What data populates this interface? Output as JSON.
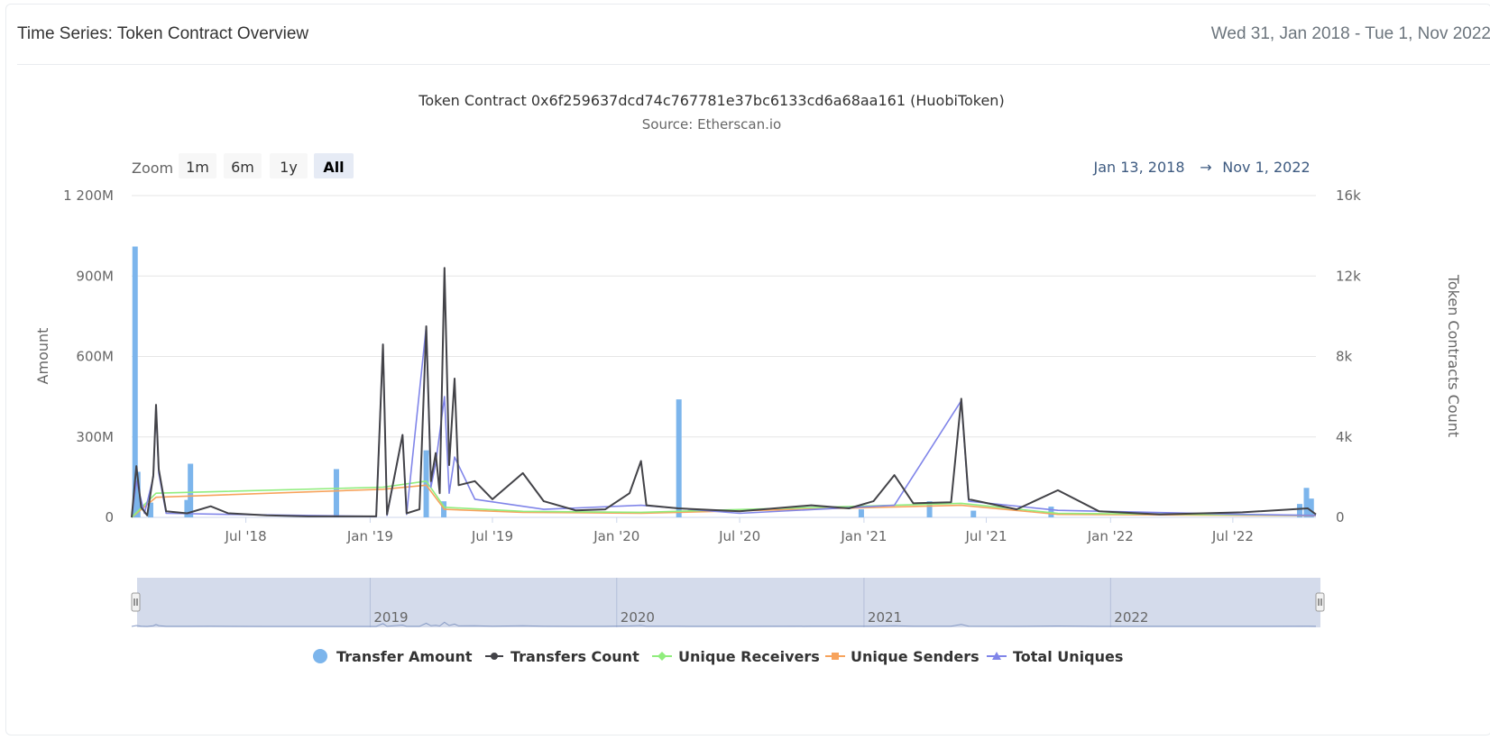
{
  "header": {
    "title": "Time Series: Token Contract Overview",
    "date_range": "Wed 31, Jan 2018 - Tue 1, Nov 2022"
  },
  "zoom": {
    "label": "Zoom",
    "buttons": [
      "1m",
      "6m",
      "1y",
      "All"
    ],
    "active": "All",
    "range_from": "Jan 13, 2018",
    "range_arrow": "→",
    "range_to": "Nov 1, 2022"
  },
  "navigator": {
    "year_labels": [
      "2019",
      "2020",
      "2021",
      "2022"
    ]
  },
  "colors": {
    "transfer_amount": "#7cb5ec",
    "transfers_count": "#434348",
    "unique_receivers": "#90ed7d",
    "unique_senders": "#f7a35c",
    "total_uniques": "#8085e9",
    "range_text": "#3d5a80",
    "navigator_bg": "#ccd5e8"
  },
  "chart_data": {
    "type": "line",
    "title": "Token Contract 0x6f259637dcd74c767781e37bc6133cd6a68aa161 (HuobiToken)",
    "subtitle": "Source: Etherscan.io",
    "xlabel": "",
    "x_ticks": [
      "Jul '18",
      "Jan '19",
      "Jul '19",
      "Jan '20",
      "Jul '20",
      "Jan '21",
      "Jul '21",
      "Jan '22",
      "Jul '22"
    ],
    "x_range": [
      "2018-01-13",
      "2022-11-01"
    ],
    "y_left": {
      "label": "Amount",
      "ticks": [
        "0",
        "300M",
        "600M",
        "900M",
        "1 200M"
      ],
      "range": [
        0,
        1200000000
      ]
    },
    "y_right": {
      "label": "Token Contracts Count",
      "ticks": [
        "0",
        "4k",
        "8k",
        "12k",
        "16k"
      ],
      "range": [
        0,
        16000
      ]
    },
    "grid": true,
    "legend_position": "bottom",
    "series": [
      {
        "name": "Transfer Amount",
        "type": "column",
        "axis": "left",
        "points": [
          [
            "2018-01-18",
            1010000000
          ],
          [
            "2018-01-22",
            170000000
          ],
          [
            "2018-02-10",
            55000000
          ],
          [
            "2018-04-10",
            200000000
          ],
          [
            "2018-04-05",
            65000000
          ],
          [
            "2018-11-12",
            180000000
          ],
          [
            "2019-03-25",
            250000000
          ],
          [
            "2019-04-20",
            60000000
          ],
          [
            "2020-04-02",
            440000000
          ],
          [
            "2020-12-28",
            30000000
          ],
          [
            "2021-04-08",
            60000000
          ],
          [
            "2021-06-12",
            25000000
          ],
          [
            "2021-10-05",
            40000000
          ],
          [
            "2022-10-08",
            50000000
          ],
          [
            "2022-10-18",
            110000000
          ],
          [
            "2022-10-25",
            70000000
          ]
        ]
      },
      {
        "name": "Transfers Count",
        "type": "line",
        "axis": "right",
        "points": [
          [
            "2018-01-13",
            0
          ],
          [
            "2018-01-20",
            2550
          ],
          [
            "2018-01-27",
            500
          ],
          [
            "2018-02-05",
            100
          ],
          [
            "2018-02-14",
            2100
          ],
          [
            "2018-02-18",
            5600
          ],
          [
            "2018-02-22",
            2400
          ],
          [
            "2018-03-05",
            300
          ],
          [
            "2018-04-05",
            200
          ],
          [
            "2018-05-10",
            550
          ],
          [
            "2018-06-05",
            200
          ],
          [
            "2018-08-01",
            100
          ],
          [
            "2018-10-01",
            50
          ],
          [
            "2019-01-10",
            50
          ],
          [
            "2019-01-20",
            8600
          ],
          [
            "2019-01-26",
            150
          ],
          [
            "2019-02-18",
            4100
          ],
          [
            "2019-02-24",
            200
          ],
          [
            "2019-03-15",
            400
          ],
          [
            "2019-03-25",
            9500
          ],
          [
            "2019-04-01",
            1800
          ],
          [
            "2019-04-08",
            3200
          ],
          [
            "2019-04-14",
            1200
          ],
          [
            "2019-04-21",
            12400
          ],
          [
            "2019-04-28",
            2600
          ],
          [
            "2019-05-06",
            6900
          ],
          [
            "2019-05-12",
            1600
          ],
          [
            "2019-06-05",
            1800
          ],
          [
            "2019-07-01",
            900
          ],
          [
            "2019-08-15",
            2200
          ],
          [
            "2019-09-15",
            800
          ],
          [
            "2019-11-01",
            350
          ],
          [
            "2019-12-15",
            400
          ],
          [
            "2020-01-20",
            1200
          ],
          [
            "2020-02-06",
            2800
          ],
          [
            "2020-02-14",
            600
          ],
          [
            "2020-04-01",
            450
          ],
          [
            "2020-07-01",
            300
          ],
          [
            "2020-10-15",
            600
          ],
          [
            "2020-12-10",
            450
          ],
          [
            "2021-01-15",
            800
          ],
          [
            "2021-02-15",
            2100
          ],
          [
            "2021-03-15",
            700
          ],
          [
            "2021-05-10",
            750
          ],
          [
            "2021-05-25",
            5900
          ],
          [
            "2021-06-05",
            900
          ],
          [
            "2021-08-15",
            400
          ],
          [
            "2021-10-15",
            1350
          ],
          [
            "2021-12-15",
            300
          ],
          [
            "2022-03-15",
            150
          ],
          [
            "2022-07-15",
            250
          ],
          [
            "2022-10-20",
            450
          ],
          [
            "2022-11-01",
            150
          ]
        ]
      },
      {
        "name": "Unique Receivers",
        "type": "line",
        "axis": "right",
        "points": [
          [
            "2018-01-13",
            0
          ],
          [
            "2018-02-18",
            1200
          ],
          [
            "2019-01-20",
            1500
          ],
          [
            "2019-03-25",
            1800
          ],
          [
            "2019-04-21",
            500
          ],
          [
            "2019-08-15",
            300
          ],
          [
            "2020-02-06",
            250
          ],
          [
            "2021-05-25",
            700
          ],
          [
            "2021-10-15",
            200
          ],
          [
            "2022-11-01",
            100
          ]
        ]
      },
      {
        "name": "Unique Senders",
        "type": "line",
        "axis": "right",
        "points": [
          [
            "2018-01-13",
            0
          ],
          [
            "2018-02-18",
            1000
          ],
          [
            "2019-01-20",
            1400
          ],
          [
            "2019-03-25",
            1600
          ],
          [
            "2019-04-21",
            400
          ],
          [
            "2019-08-15",
            250
          ],
          [
            "2020-02-06",
            200
          ],
          [
            "2021-05-25",
            600
          ],
          [
            "2021-10-15",
            150
          ],
          [
            "2022-11-01",
            80
          ]
        ]
      },
      {
        "name": "Total Uniques",
        "type": "line",
        "axis": "right",
        "points": [
          [
            "2018-01-13",
            0
          ],
          [
            "2018-01-20",
            1800
          ],
          [
            "2018-02-01",
            200
          ],
          [
            "2018-02-14",
            2000
          ],
          [
            "2018-02-18",
            5500
          ],
          [
            "2018-02-22",
            2200
          ],
          [
            "2018-03-05",
            200
          ],
          [
            "2018-06-05",
            150
          ],
          [
            "2019-01-10",
            50
          ],
          [
            "2019-01-20",
            8600
          ],
          [
            "2019-01-26",
            100
          ],
          [
            "2019-02-18",
            4100
          ],
          [
            "2019-02-24",
            150
          ],
          [
            "2019-03-25",
            9500
          ],
          [
            "2019-04-01",
            1500
          ],
          [
            "2019-04-08",
            2700
          ],
          [
            "2019-04-21",
            6000
          ],
          [
            "2019-04-28",
            1200
          ],
          [
            "2019-05-06",
            3000
          ],
          [
            "2019-06-05",
            900
          ],
          [
            "2019-09-15",
            400
          ],
          [
            "2020-02-06",
            600
          ],
          [
            "2020-07-01",
            200
          ],
          [
            "2021-02-15",
            600
          ],
          [
            "2021-05-25",
            5800
          ],
          [
            "2021-06-05",
            800
          ],
          [
            "2021-10-15",
            350
          ],
          [
            "2022-07-15",
            150
          ],
          [
            "2022-11-01",
            100
          ]
        ]
      }
    ]
  }
}
